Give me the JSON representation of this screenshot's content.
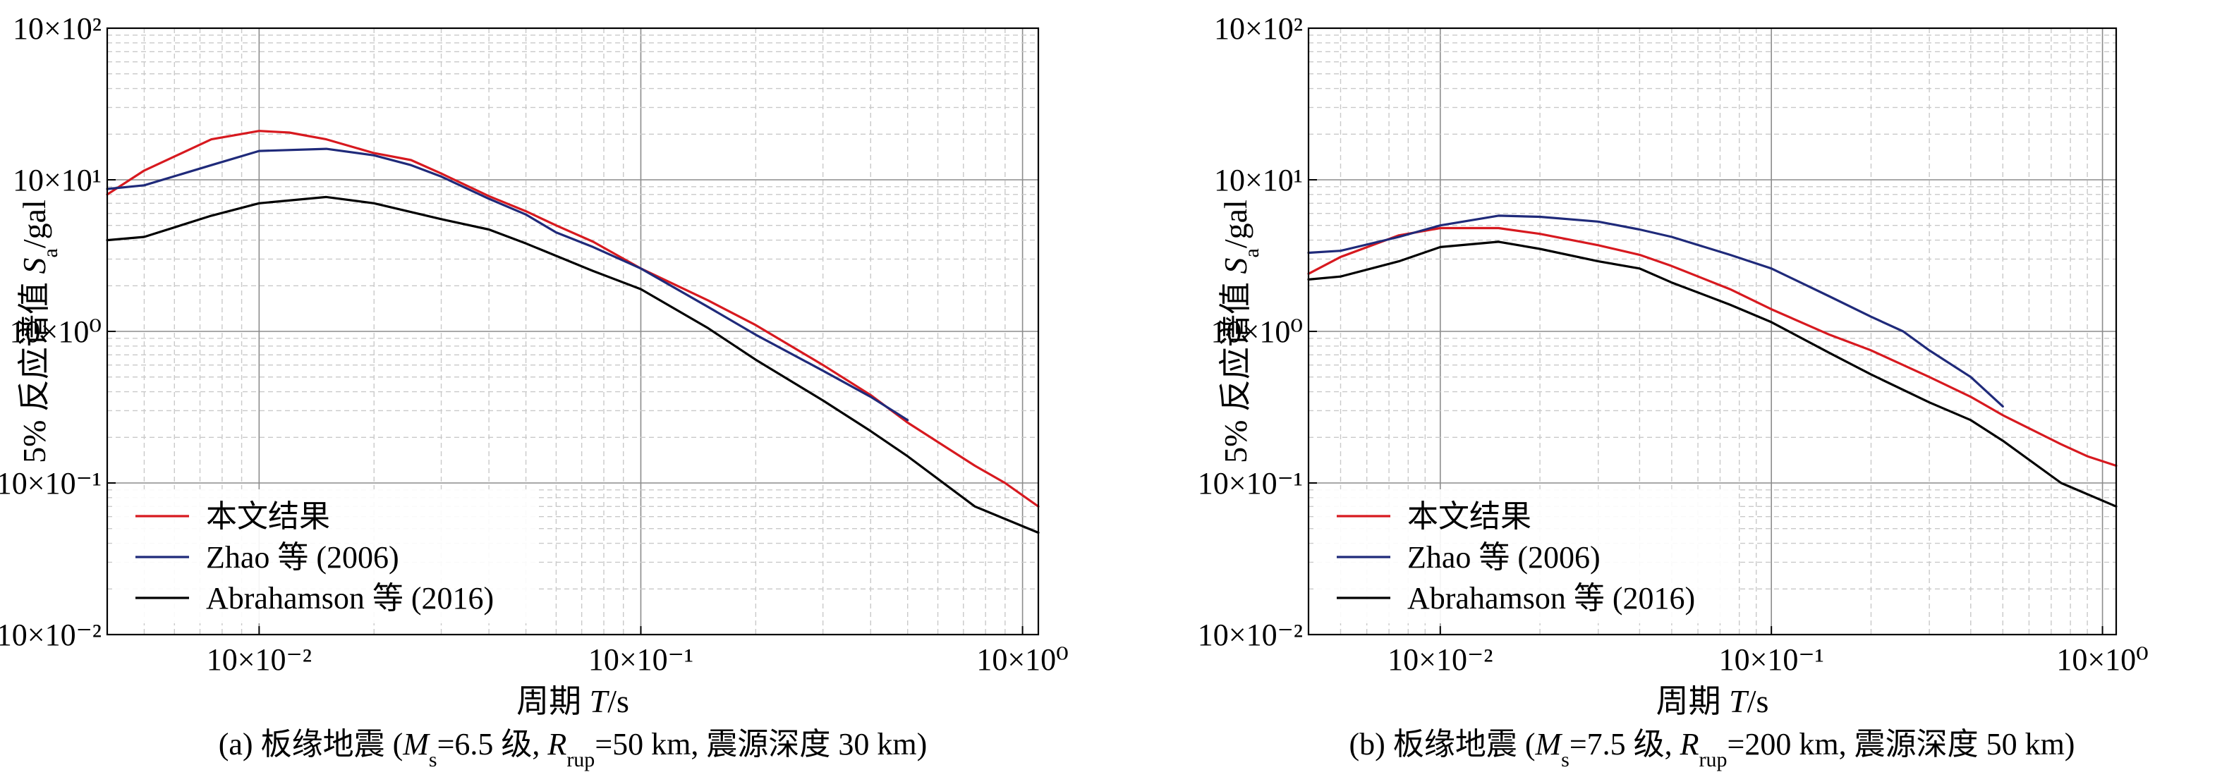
{
  "chart_data": [
    {
      "type": "line",
      "xscale": "log",
      "yscale": "log",
      "xlim": [
        0.004,
        1.1
      ],
      "ylim": [
        0.01,
        100
      ],
      "grid": true,
      "legend_position": "bottom-left",
      "xlabel_prefix": "周期 ",
      "xlabel_var": "T",
      "xlabel_suffix": "/s",
      "ylabel_prefix": "5% 反应谱值 ",
      "ylabel_var": "S",
      "ylabel_sub": "a",
      "ylabel_suffix": "/gal",
      "x_ticks": [
        {
          "value": 0.01,
          "label": "10×10⁻²"
        },
        {
          "value": 0.1,
          "label": "10×10⁻¹"
        },
        {
          "value": 1,
          "label": "10×10⁰"
        }
      ],
      "y_ticks": [
        {
          "value": 0.01,
          "label": "10×10⁻²"
        },
        {
          "value": 0.1,
          "label": "10×10⁻¹"
        },
        {
          "value": 1,
          "label": "10×10⁰"
        },
        {
          "value": 10,
          "label": "10×10¹"
        },
        {
          "value": 100,
          "label": "10×10²"
        }
      ],
      "caption": {
        "prefix": "(a) 板缘地震 (",
        "ms_var": "M",
        "ms_sub": "s",
        "ms_val": "=6.5 级, ",
        "r_var": "R",
        "r_sub": "rup",
        "r_val": "=50 km, 震源深度 30 km)"
      },
      "series": [
        {
          "name": "本文结果",
          "color": "#d7191f",
          "x": [
            0.004,
            0.005,
            0.0075,
            0.01,
            0.012,
            0.015,
            0.02,
            0.025,
            0.03,
            0.04,
            0.05,
            0.06,
            0.075,
            0.1,
            0.15,
            0.2,
            0.3,
            0.4,
            0.5,
            0.75,
            0.9,
            1.1
          ],
          "y": [
            8.0,
            11.5,
            18.5,
            21.0,
            20.5,
            18.5,
            15.0,
            13.5,
            11.0,
            7.8,
            6.2,
            5.0,
            3.9,
            2.6,
            1.6,
            1.1,
            0.6,
            0.38,
            0.25,
            0.13,
            0.1,
            0.07
          ]
        },
        {
          "name": "Zhao 等 (2006)",
          "color": "#1f2a7a",
          "x": [
            0.004,
            0.005,
            0.0075,
            0.01,
            0.015,
            0.02,
            0.025,
            0.03,
            0.04,
            0.05,
            0.06,
            0.075,
            0.1,
            0.15,
            0.2,
            0.3,
            0.4,
            0.5
          ],
          "y": [
            8.7,
            9.2,
            12.5,
            15.5,
            16.0,
            14.5,
            12.5,
            10.5,
            7.5,
            5.9,
            4.5,
            3.6,
            2.6,
            1.45,
            0.95,
            0.55,
            0.37,
            0.26
          ]
        },
        {
          "name": "Abrahamson 等 (2016)",
          "color": "#000000",
          "x": [
            0.004,
            0.005,
            0.0075,
            0.01,
            0.015,
            0.02,
            0.03,
            0.04,
            0.05,
            0.075,
            0.1,
            0.15,
            0.2,
            0.3,
            0.4,
            0.5,
            0.75,
            1.1
          ],
          "y": [
            4.0,
            4.2,
            5.8,
            7.0,
            7.7,
            7.0,
            5.5,
            4.7,
            3.8,
            2.5,
            1.9,
            1.05,
            0.65,
            0.35,
            0.22,
            0.15,
            0.07,
            0.047
          ]
        }
      ]
    },
    {
      "type": "line",
      "xscale": "log",
      "yscale": "log",
      "xlim": [
        0.004,
        1.1
      ],
      "ylim": [
        0.01,
        100
      ],
      "grid": true,
      "legend_position": "bottom-left",
      "xlabel_prefix": "周期 ",
      "xlabel_var": "T",
      "xlabel_suffix": "/s",
      "ylabel_prefix": "5% 反应谱值 ",
      "ylabel_var": "S",
      "ylabel_sub": "a",
      "ylabel_suffix": "/gal",
      "x_ticks": [
        {
          "value": 0.01,
          "label": "10×10⁻²"
        },
        {
          "value": 0.1,
          "label": "10×10⁻¹"
        },
        {
          "value": 1,
          "label": "10×10⁰"
        }
      ],
      "y_ticks": [
        {
          "value": 0.01,
          "label": "10×10⁻²"
        },
        {
          "value": 0.1,
          "label": "10×10⁻¹"
        },
        {
          "value": 1,
          "label": "10×10⁰"
        },
        {
          "value": 10,
          "label": "10×10¹"
        },
        {
          "value": 100,
          "label": "10×10²"
        }
      ],
      "caption": {
        "prefix": "(b) 板缘地震 (",
        "ms_var": "M",
        "ms_sub": "s",
        "ms_val": "=7.5 级, ",
        "r_var": "R",
        "r_sub": "rup",
        "r_val": "=200 km, 震源深度 50 km)"
      },
      "series": [
        {
          "name": "本文结果",
          "color": "#d7191f",
          "x": [
            0.004,
            0.005,
            0.0075,
            0.01,
            0.015,
            0.02,
            0.03,
            0.04,
            0.05,
            0.075,
            0.1,
            0.15,
            0.2,
            0.3,
            0.4,
            0.5,
            0.75,
            0.9,
            1.1
          ],
          "y": [
            2.4,
            3.1,
            4.3,
            4.8,
            4.8,
            4.4,
            3.7,
            3.2,
            2.7,
            1.9,
            1.4,
            0.95,
            0.75,
            0.5,
            0.37,
            0.28,
            0.18,
            0.15,
            0.13
          ]
        },
        {
          "name": "Zhao 等 (2006)",
          "color": "#1f2a7a",
          "x": [
            0.004,
            0.005,
            0.0075,
            0.01,
            0.015,
            0.02,
            0.03,
            0.04,
            0.05,
            0.075,
            0.1,
            0.15,
            0.2,
            0.25,
            0.3,
            0.4,
            0.5
          ],
          "y": [
            3.3,
            3.4,
            4.2,
            5.0,
            5.8,
            5.7,
            5.3,
            4.7,
            4.2,
            3.2,
            2.6,
            1.7,
            1.25,
            1.0,
            0.75,
            0.5,
            0.32
          ]
        },
        {
          "name": "Abrahamson 等 (2016)",
          "color": "#000000",
          "x": [
            0.004,
            0.005,
            0.0075,
            0.01,
            0.015,
            0.02,
            0.03,
            0.04,
            0.05,
            0.075,
            0.1,
            0.15,
            0.2,
            0.3,
            0.4,
            0.5,
            0.75,
            1.1
          ],
          "y": [
            2.2,
            2.3,
            2.9,
            3.6,
            3.9,
            3.5,
            2.9,
            2.6,
            2.1,
            1.5,
            1.15,
            0.72,
            0.52,
            0.34,
            0.26,
            0.19,
            0.1,
            0.07
          ]
        }
      ]
    }
  ]
}
